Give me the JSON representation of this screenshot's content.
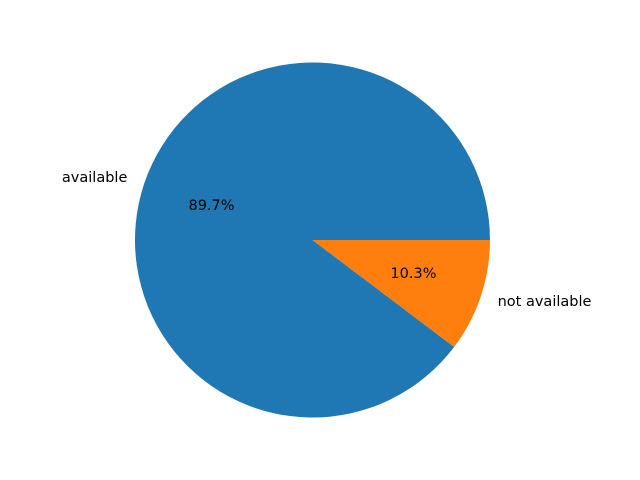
{
  "chart_data": {
    "type": "pie",
    "title": "",
    "start_angle_deg": 0,
    "direction": "counterclockwise",
    "slices": [
      {
        "label": "available",
        "value": 89.7,
        "pct_label": "89.7%",
        "color": "#1f77b4"
      },
      {
        "label": "not available",
        "value": 10.3,
        "pct_label": "10.3%",
        "color": "#ff7f0e"
      }
    ]
  }
}
